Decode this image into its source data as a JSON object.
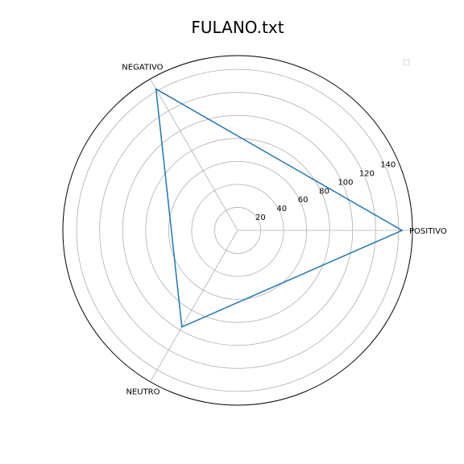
{
  "chart_data": {
    "type": "radar",
    "title": "FULANO.txt",
    "categories": [
      "POSITIVO",
      "NEGATIVO",
      "NEUTRO"
    ],
    "series": [
      {
        "values": [
          143,
          142,
          97
        ],
        "color": "#1f77b4"
      }
    ],
    "rlim": [
      0,
      152
    ],
    "rticks": [
      20,
      40,
      60,
      80,
      100,
      120,
      140
    ],
    "grid": true,
    "legend": "top-right"
  }
}
